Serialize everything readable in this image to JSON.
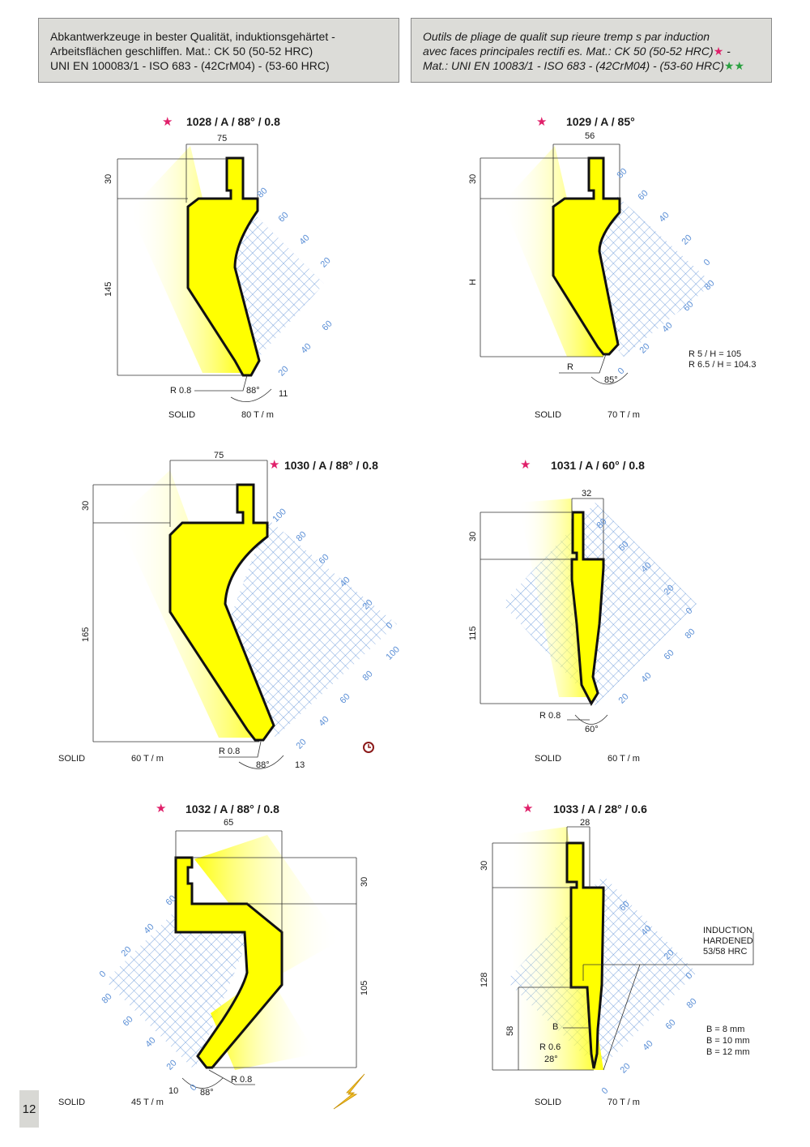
{
  "header": {
    "de_line1": "Abkantwerkzeuge in bester Qualität, induktionsgehärtet -",
    "de_line2": "Arbeitsflächen geschliffen. Mat.: CK 50 (50-52 HRC)",
    "de_line3": "UNI EN 100083/1 - ISO 683 - (42CrM04) - (53-60 HRC)",
    "fr_line1": "Outils de pliage de qualit  sup rieure tremp s par induction",
    "fr_line2": "avec faces principales rectifi es. Mat.: CK 50 (50-52 HRC)",
    "fr_line2_tail": " -",
    "fr_line3": "Mat.: UNI EN 10083/1 - ISO 683 - (42CrM04) - (53-60 HRC)",
    "star_single": "★",
    "star_double": "★★"
  },
  "tools": [
    {
      "title": "1028 / A / 88° / 0.8",
      "width": "75",
      "top_h": "30",
      "height": "145",
      "radius": "R 0.8",
      "angle": "88°",
      "tip": "11",
      "type": "SOLID",
      "load": "80 T / m"
    },
    {
      "title": "1029 / A / 85°",
      "width": "56",
      "top_h": "30",
      "height": "H",
      "radius": "R",
      "angle": "85°",
      "note1": "R    5 / H = 105",
      "note2": "R 6.5 / H = 104.3",
      "type": "SOLID",
      "load": "70 T / m"
    },
    {
      "title": "1030 / A / 88° / 0.8",
      "width": "75",
      "top_h": "30",
      "height": "165",
      "radius": "R 0.8",
      "angle": "88°",
      "tip": "13",
      "type": "SOLID",
      "load": "60 T / m"
    },
    {
      "title": "1031 / A  / 60° / 0.8",
      "width": "32",
      "top_h": "30",
      "height": "115",
      "radius": "R 0.8",
      "angle": "60°",
      "type": "SOLID",
      "load": "60 T / m"
    },
    {
      "title": "1032 / A  / 88° / 0.8",
      "width": "65",
      "top_h": "30",
      "height": "105",
      "radius": "R 0.8",
      "angle": "88°",
      "tip": "10",
      "type": "SOLID",
      "load": "45 T / m"
    },
    {
      "title": "1033 / A / 28° / 0.6",
      "width": "28",
      "top_h": "30",
      "height": "128",
      "height2": "58",
      "radius": "R 0.6",
      "angle": "28°",
      "b_label": "B",
      "induction1": "INDUCTION",
      "induction2": "HARDENED",
      "induction3": "53/58 HRC",
      "b1": "B =   8 mm",
      "b2": "B = 10 mm",
      "b3": "B = 12 mm",
      "type": "SOLID",
      "load": "70 T / m"
    }
  ],
  "grid_labels": {
    "t1": [
      "80",
      "60",
      "40",
      "20",
      "60",
      "40",
      "20"
    ],
    "t2": [
      "80",
      "60",
      "40",
      "20",
      "0",
      "80",
      "60",
      "40",
      "20",
      "0"
    ],
    "t3": [
      "100",
      "80",
      "60",
      "40",
      "20",
      "0",
      "100",
      "80",
      "60",
      "40",
      "20"
    ],
    "t4": [
      "80",
      "60",
      "40",
      "20",
      "0",
      "80",
      "60",
      "40",
      "20"
    ],
    "t5": [
      "60",
      "40",
      "20",
      "0",
      "80",
      "60",
      "40",
      "20",
      "0"
    ],
    "t6": [
      "60",
      "40",
      "20",
      "0",
      "80",
      "60",
      "40",
      "20",
      "0"
    ]
  },
  "page_number": "12",
  "colors": {
    "tool_fill": "#ffff00",
    "grid": "#5b8fd6",
    "header_bg": "#dcdcd8",
    "accent_star": "#e0206a",
    "green_star": "#2aa040"
  }
}
